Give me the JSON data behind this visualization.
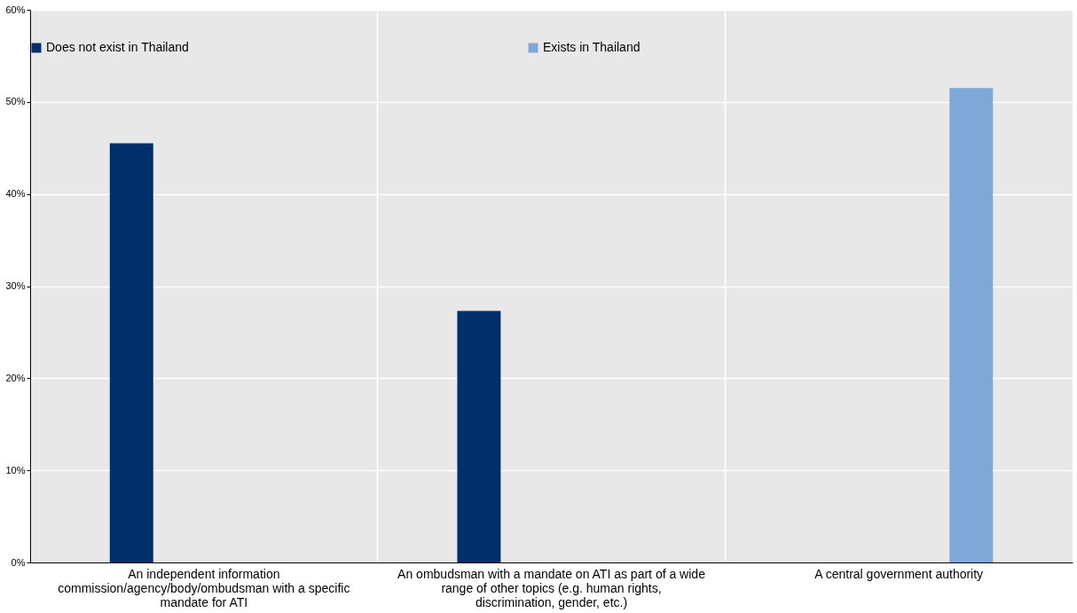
{
  "chart_data": {
    "type": "bar",
    "categories": [
      "An independent information commission/agency/body/ombudsman with a specific mandate for ATI",
      "An ombudsman with a mandate on ATI as part of a wide range of other topics (e.g. human rights, discrimination, gender, etc.)",
      "A central government authority"
    ],
    "series": [
      {
        "name": "Does not exist in Thailand",
        "color": "#002f6c",
        "values": [
          45.5,
          27.3,
          null
        ]
      },
      {
        "name": "Exists in Thailand",
        "color": "#7fa8d8",
        "values": [
          null,
          null,
          51.5
        ]
      }
    ],
    "ylim": [
      0,
      60
    ],
    "yticks": [
      {
        "value": 0,
        "label": "0%"
      },
      {
        "value": 10,
        "label": "10%"
      },
      {
        "value": 20,
        "label": "20%"
      },
      {
        "value": 30,
        "label": "30%"
      },
      {
        "value": 40,
        "label": "40%"
      },
      {
        "value": 50,
        "label": "50%"
      },
      {
        "value": 60,
        "label": "60%"
      }
    ],
    "grid": true,
    "legend": "top"
  }
}
